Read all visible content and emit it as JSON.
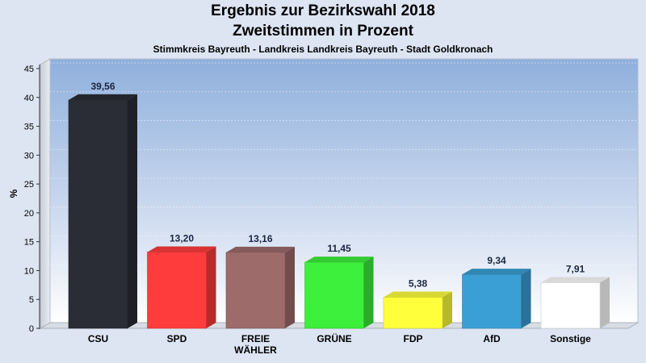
{
  "header": {
    "title": "Ergebnis zur Bezirkswahl 2018",
    "subtitle": "Zweitstimmen in Prozent",
    "caption": "Stimmkreis Bayreuth - Landkreis Landkreis Bayreuth - Stadt Goldkronach"
  },
  "chart_data": {
    "type": "bar",
    "title": "Ergebnis zur Bezirkswahl 2018",
    "subtitle": "Zweitstimmen in Prozent",
    "ylabel": "%",
    "xlabel": "",
    "ylim": [
      0,
      45
    ],
    "yticks": [
      0,
      5,
      10,
      15,
      20,
      25,
      30,
      35,
      40,
      45
    ],
    "grid": true,
    "categories": [
      "CSU",
      "SPD",
      "FREIE WÄHLER",
      "GRÜNE",
      "FDP",
      "AfD",
      "Sonstige"
    ],
    "category_lines": [
      [
        "CSU"
      ],
      [
        "SPD"
      ],
      [
        "FREIE",
        "WÄHLER"
      ],
      [
        "GRÜNE"
      ],
      [
        "FDP"
      ],
      [
        "AfD"
      ],
      [
        "Sonstige"
      ]
    ],
    "values": [
      39.56,
      13.2,
      13.16,
      11.45,
      5.38,
      9.34,
      7.91
    ],
    "value_labels": [
      "39,56",
      "13,20",
      "13,16",
      "11,45",
      "5,38",
      "9,34",
      "7,91"
    ],
    "colors": [
      "#2a2d35",
      "#ff3c3c",
      "#9e6b6b",
      "#3cf03c",
      "#ffff3c",
      "#3a9fd4",
      "#ffffff"
    ]
  }
}
